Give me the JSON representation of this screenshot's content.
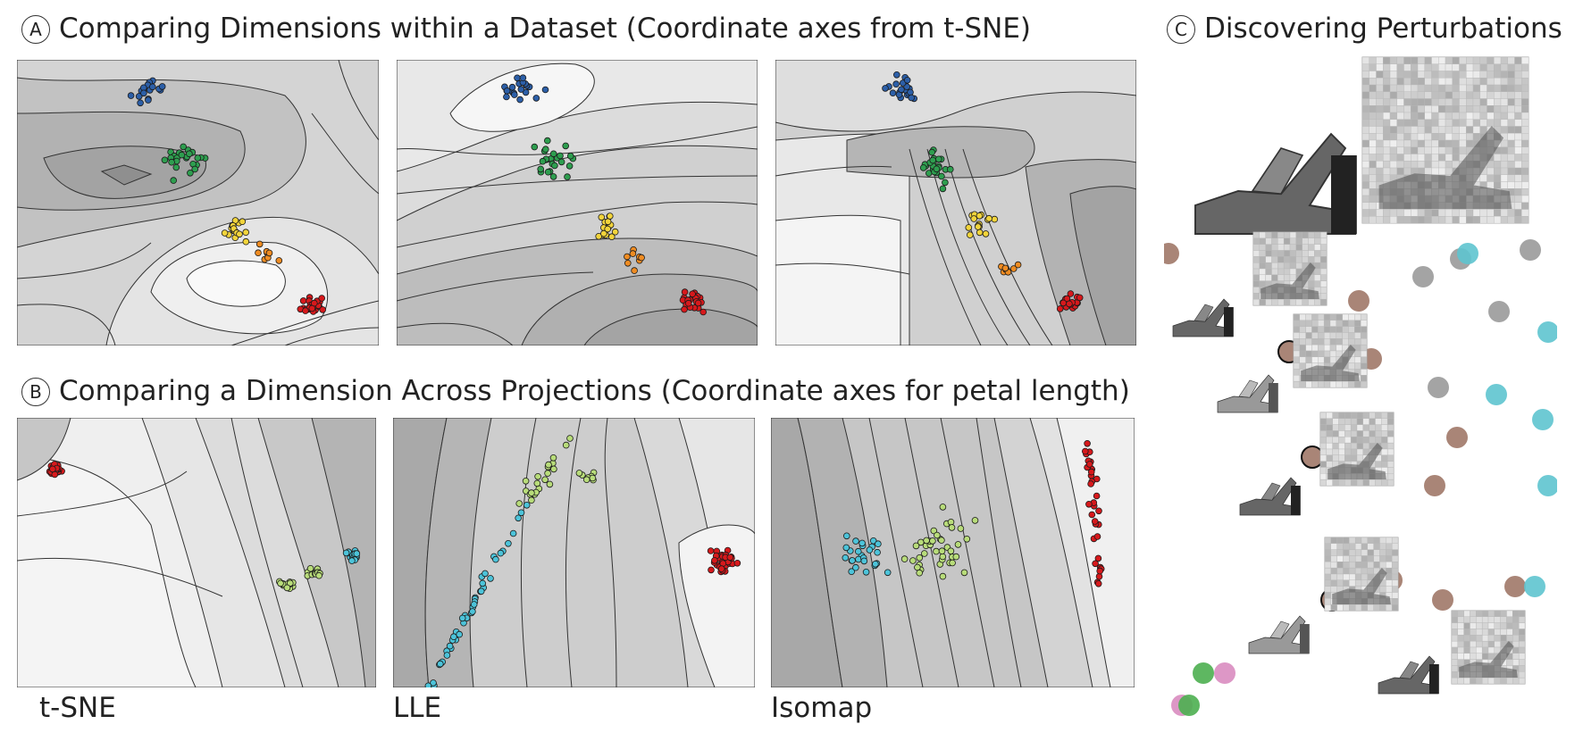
{
  "sections": {
    "a": {
      "marker": "A",
      "title": "Comparing Dimensions within a Dataset (Coordinate axes from t-SNE)"
    },
    "b": {
      "marker": "B",
      "title": "Comparing a Dimension Across Projections (Coordinate axes for petal length)"
    },
    "c": {
      "marker": "C",
      "title": "Discovering Perturbations"
    }
  },
  "projection_labels": [
    "t-SNE",
    "LLE",
    "Isomap"
  ],
  "colors": {
    "blue": "#2c5fa8",
    "green": "#2e9e4f",
    "yellow": "#f2d43b",
    "orange": "#ef8c22",
    "red": "#d7191c",
    "cyan": "#4cc3d9",
    "lightgreen": "#b8dc7a",
    "brown": "#a07868",
    "gray": "#9a9a9a",
    "teal": "#5ec4cf",
    "pink": "#d98cc0",
    "mgreen": "#4caf50"
  },
  "icons": {
    "contour_plot": "contour-plot-icon",
    "fashion_thumbnail": "sandal-thumbnail-icon",
    "perturbation_grid": "pixel-grid-icon"
  }
}
